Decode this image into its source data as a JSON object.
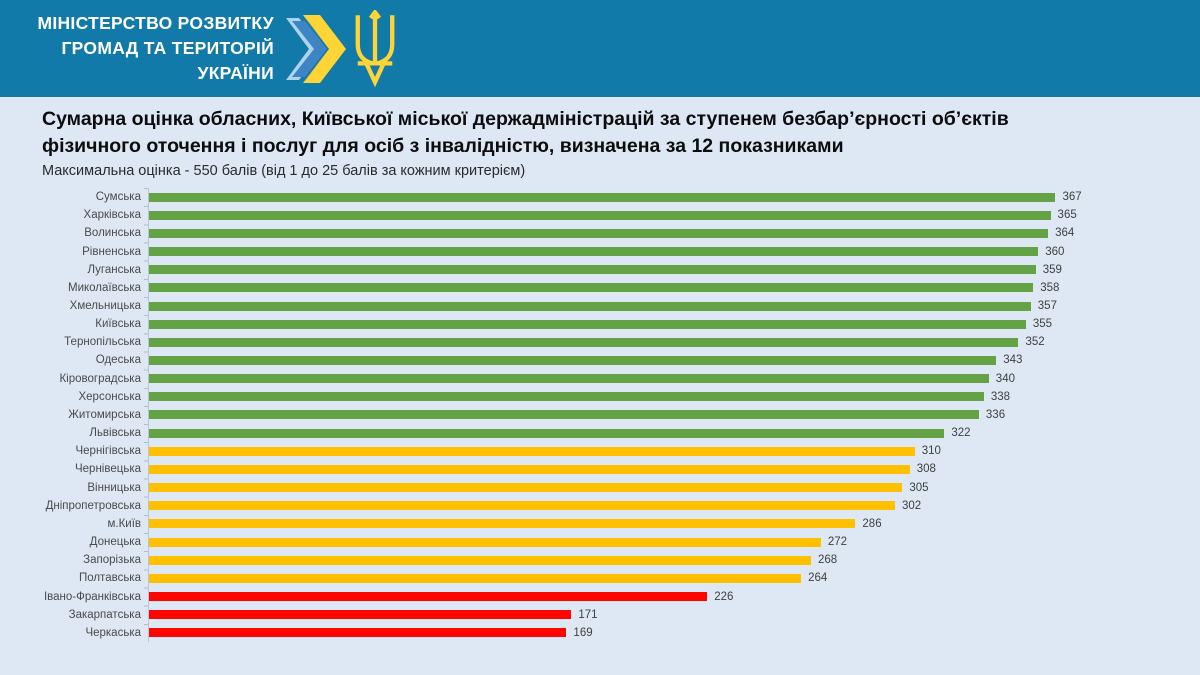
{
  "header": {
    "ministry_line1": "МІНІСТЕРСТВО РОЗВИТКУ",
    "ministry_line2": "ГРОМАД ТА ТЕРИТОРІЙ  УКРАЇНИ"
  },
  "title_line1": "Сумарна оцінка обласних, Київської міської держадміністрацій за ступенем безбар’єрності об’єктів",
  "title_line2": "фізичного оточення і послуг для осіб з інвалідністю, визначена за 12 показниками",
  "subtitle": "Максимальна оцінка - 550 балів (від 1 до 25 балів за кожним критерієм)",
  "colors": {
    "header_bg": "#127AA9",
    "page_bg": "#DDE8F4",
    "green": "#63A345",
    "yellow": "#FFC000",
    "red": "#FF0500",
    "logo_light_blue": "#AFD4E9",
    "logo_blue": "#3E85C6",
    "logo_yellow": "#FFD535"
  },
  "chart_data": {
    "type": "bar",
    "orientation": "horizontal",
    "title": "Сумарна оцінка обласних, Київської міської держадміністрацій за ступенем безбар’єрності об’єктів фізичного оточення і послуг для осіб з інвалідністю, визначена за 12 показниками",
    "subtitle": "Максимальна оцінка - 550 балів (від 1 до 25 балів за кожним критерієм)",
    "xlim": [
      0,
      420
    ],
    "grid": false,
    "legend": false,
    "value_labels": true,
    "categories": [
      "Сумська",
      "Харківська",
      "Волинська",
      "Рівненська",
      "Луганська",
      "Миколаївська",
      "Хмельницька",
      "Київська",
      "Тернопільська",
      "Одеська",
      "Кіровоградська",
      "Херсонська",
      "Житомирська",
      "Львівська",
      "Чернігівська",
      "Чернівецька",
      "Вінницька",
      "Дніпропетровська",
      "м.Київ",
      "Донецька",
      "Запорізька",
      "Полтавська",
      "Івано-Франківська",
      "Закарпатська",
      "Черкаська"
    ],
    "values": [
      367,
      365,
      364,
      360,
      359,
      358,
      357,
      355,
      352,
      343,
      340,
      338,
      336,
      322,
      310,
      308,
      305,
      302,
      286,
      272,
      268,
      264,
      226,
      171,
      169
    ],
    "bar_colors": [
      "green",
      "green",
      "green",
      "green",
      "green",
      "green",
      "green",
      "green",
      "green",
      "green",
      "green",
      "green",
      "green",
      "green",
      "yellow",
      "yellow",
      "yellow",
      "yellow",
      "yellow",
      "yellow",
      "yellow",
      "yellow",
      "red",
      "red",
      "red"
    ]
  }
}
